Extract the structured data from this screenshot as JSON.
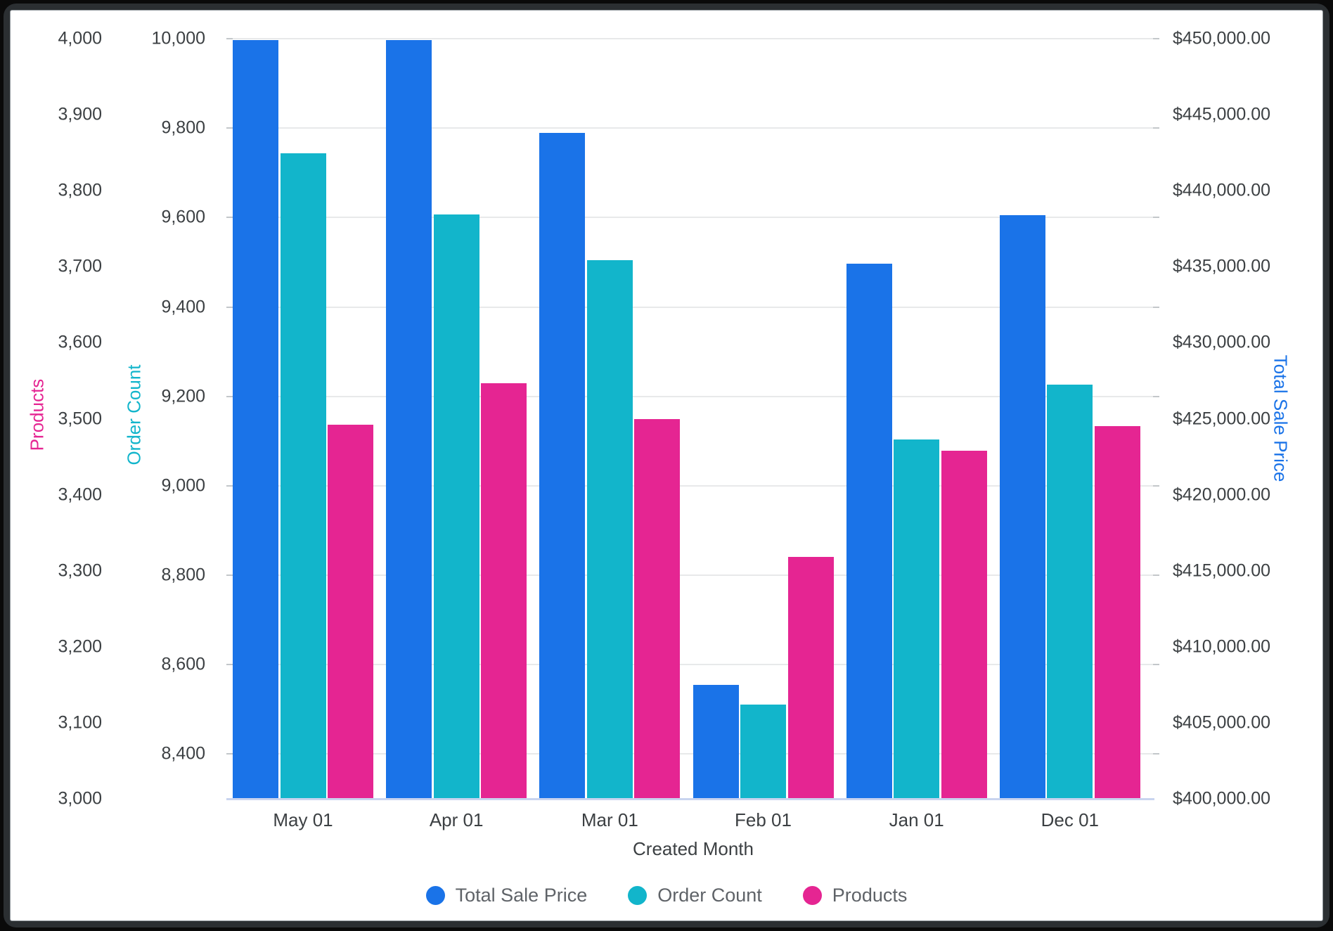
{
  "axes": {
    "products": {
      "title": "Products",
      "color": "#e52592",
      "ticks": [
        "4,000",
        "3,900",
        "3,800",
        "3,700",
        "3,600",
        "3,500",
        "3,400",
        "3,300",
        "3,200",
        "3,100",
        "3,000"
      ]
    },
    "order_count": {
      "title": "Order Count",
      "color": "#12b5cb",
      "ticks": [
        "10,000",
        "9,800",
        "9,600",
        "9,400",
        "9,200",
        "9,000",
        "8,800",
        "8,600",
        "8,400"
      ]
    },
    "total_sale_price": {
      "title": "Total Sale Price",
      "color": "#1a73e8",
      "ticks": [
        "$450,000.00",
        "$445,000.00",
        "$440,000.00",
        "$435,000.00",
        "$430,000.00",
        "$425,000.00",
        "$420,000.00",
        "$415,000.00",
        "$410,000.00",
        "$405,000.00",
        "$400,000.00"
      ]
    },
    "x": {
      "title": "Created Month",
      "labels": [
        "May 01",
        "Apr 01",
        "Mar 01",
        "Feb 01",
        "Jan 01",
        "Dec 01"
      ]
    }
  },
  "legend": {
    "items": [
      {
        "label": "Total Sale Price",
        "color": "#1a73e8"
      },
      {
        "label": "Order Count",
        "color": "#12b5cb"
      },
      {
        "label": "Products",
        "color": "#e52592"
      }
    ]
  },
  "chart_data": {
    "type": "bar",
    "categories": [
      "May 01",
      "Apr 01",
      "Mar 01",
      "Feb 01",
      "Jan 01",
      "Dec 01"
    ],
    "xlabel": "Created Month",
    "grid": "horizontal gridlines at Order Count ticks",
    "legend_position": "bottom",
    "series": [
      {
        "name": "Total Sale Price",
        "color": "#1a73e8",
        "axis": "right",
        "axis_range": [
          400000,
          450000
        ],
        "tick_step": 5000,
        "values": [
          449900,
          449900,
          443800,
          407500,
          435200,
          438400
        ]
      },
      {
        "name": "Order Count",
        "color": "#12b5cb",
        "axis": "left-inner",
        "axis_range": [
          8300,
          10000
        ],
        "tick_step": 200,
        "values": [
          9743,
          9607,
          9504,
          8510,
          9103,
          9227
        ]
      },
      {
        "name": "Products",
        "color": "#e52592",
        "axis": "left-outer",
        "axis_range": [
          3000,
          4000
        ],
        "tick_step": 100,
        "values": [
          3492,
          3547,
          3500,
          3318,
          3458,
          3490
        ]
      }
    ]
  }
}
